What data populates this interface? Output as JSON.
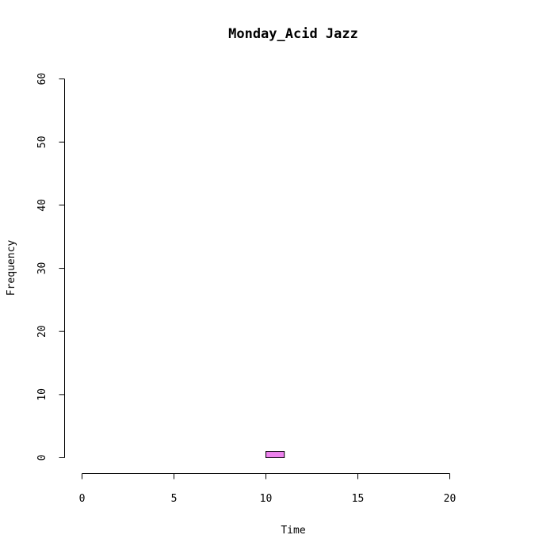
{
  "chart_data": {
    "type": "bar",
    "title": "Monday_Acid Jazz",
    "xlabel": "Time",
    "ylabel": "Frequency",
    "xlim": [
      0,
      24
    ],
    "ylim": [
      0,
      60
    ],
    "x_ticks": [
      0,
      5,
      10,
      15,
      20
    ],
    "y_ticks": [
      0,
      10,
      20,
      30,
      40,
      50,
      60
    ],
    "bin_width": 1,
    "bins": [
      {
        "start": 0,
        "count": 0
      },
      {
        "start": 1,
        "count": 0
      },
      {
        "start": 2,
        "count": 0
      },
      {
        "start": 3,
        "count": 0
      },
      {
        "start": 4,
        "count": 0
      },
      {
        "start": 5,
        "count": 0
      },
      {
        "start": 6,
        "count": 0
      },
      {
        "start": 7,
        "count": 0
      },
      {
        "start": 8,
        "count": 0
      },
      {
        "start": 9,
        "count": 0
      },
      {
        "start": 10,
        "count": 1
      },
      {
        "start": 11,
        "count": 0
      },
      {
        "start": 12,
        "count": 0
      },
      {
        "start": 13,
        "count": 0
      },
      {
        "start": 14,
        "count": 0
      },
      {
        "start": 15,
        "count": 0
      },
      {
        "start": 16,
        "count": 0
      },
      {
        "start": 17,
        "count": 0
      },
      {
        "start": 18,
        "count": 0
      },
      {
        "start": 19,
        "count": 0
      },
      {
        "start": 20,
        "count": 0
      },
      {
        "start": 21,
        "count": 0
      },
      {
        "start": 22,
        "count": 0
      },
      {
        "start": 23,
        "count": 0
      }
    ],
    "bar_color": "#ee82ee",
    "grid": false,
    "legend": "none"
  }
}
